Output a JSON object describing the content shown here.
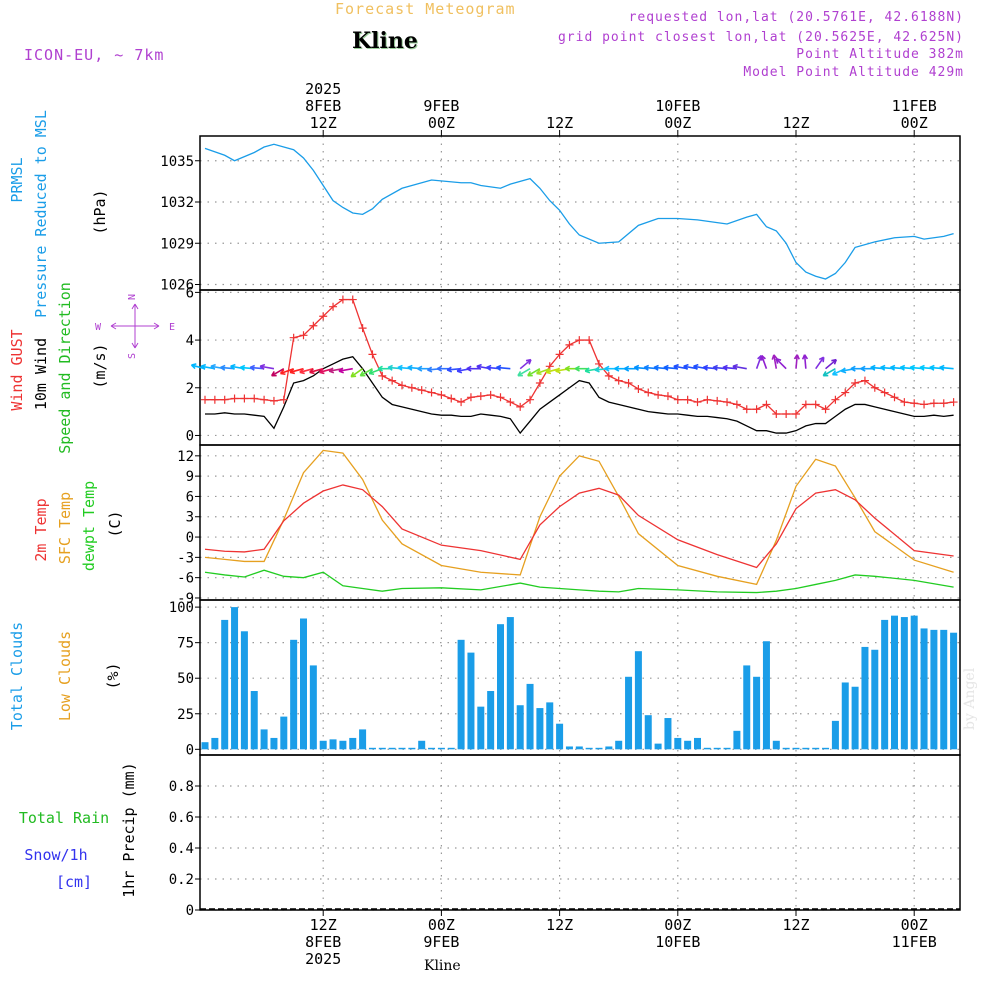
{
  "header": {
    "product_title": "Forecast Meteogram",
    "station_name": "Kline",
    "model": "ICON-EU, ~ 7km",
    "requested_lonlat": "requested lon,lat (20.5761E, 42.6188N)",
    "grid_point_lonlat": "grid point closest lon,lat (20.5625E, 42.625N)",
    "point_altitude": "Point Altitude 382m",
    "model_point_altitude": "Model Point Altitude 429m"
  },
  "footer": {
    "station_name": "Kline",
    "watermark": "by Angel"
  },
  "colors": {
    "pressure": "#1a9de8",
    "gust": "#ee3333",
    "wind": "#000000",
    "direction": "#22bb22",
    "temp2m": "#ee3333",
    "sfc_temp": "#e6a020",
    "dewpt": "#22cc22",
    "total_clouds": "#1a9de8",
    "low_clouds": "#e6a020",
    "rain": "#22bb22",
    "snow": "#3333ee",
    "title": "#f0c060",
    "info": "#b040d0"
  },
  "time_axis": {
    "top_ticks": [
      {
        "t": 12,
        "lines": [
          "2025",
          "8FEB",
          "12Z"
        ]
      },
      {
        "t": 24,
        "lines": [
          "9FEB",
          "00Z"
        ]
      },
      {
        "t": 36,
        "lines": [
          "12Z"
        ]
      },
      {
        "t": 48,
        "lines": [
          "10FEB",
          "00Z"
        ]
      },
      {
        "t": 60,
        "lines": [
          "12Z"
        ]
      },
      {
        "t": 72,
        "lines": [
          "11FEB",
          "00Z"
        ]
      }
    ],
    "bottom_ticks": [
      {
        "t": 12,
        "lines": [
          "12Z",
          "8FEB",
          "2025"
        ]
      },
      {
        "t": 24,
        "lines": [
          "00Z",
          "9FEB"
        ]
      },
      {
        "t": 36,
        "lines": [
          "12Z"
        ]
      },
      {
        "t": 48,
        "lines": [
          "00Z",
          "10FEB"
        ]
      },
      {
        "t": 60,
        "lines": [
          "12Z"
        ]
      },
      {
        "t": 72,
        "lines": [
          "00Z",
          "11FEB"
        ]
      }
    ]
  },
  "chart_data": [
    {
      "type": "line",
      "title": "PRMSL Pressure Reduced to MSL",
      "ylabel_lines": [
        "PRMSL",
        "Pressure Reduced to MSL"
      ],
      "unit": "(hPa)",
      "ylim": [
        1025.6,
        1036.8
      ],
      "yticks": [
        1026,
        1029,
        1032,
        1035
      ],
      "x": [
        0,
        2,
        3,
        5,
        6,
        7,
        9,
        10,
        11,
        12,
        13,
        14,
        15,
        16,
        17,
        18,
        20,
        23,
        26,
        27,
        28,
        29,
        30,
        31,
        33,
        34,
        35,
        36,
        37,
        38,
        40,
        42,
        44,
        46,
        48,
        50,
        52,
        53,
        55,
        56,
        57,
        58,
        59,
        60,
        61,
        62,
        63,
        64,
        65,
        66,
        68,
        70,
        72,
        73,
        74,
        75,
        76
      ],
      "series": [
        {
          "name": "PRMSL",
          "values": [
            1035.9,
            1035.4,
            1035.0,
            1035.6,
            1036.0,
            1036.2,
            1035.8,
            1035.2,
            1034.3,
            1033.2,
            1032.1,
            1031.6,
            1031.2,
            1031.1,
            1031.5,
            1032.2,
            1033.0,
            1033.6,
            1033.4,
            1033.4,
            1033.2,
            1033.1,
            1033.0,
            1033.3,
            1033.7,
            1033.0,
            1032.1,
            1031.4,
            1030.4,
            1029.6,
            1029.0,
            1029.1,
            1030.3,
            1030.8,
            1030.8,
            1030.7,
            1030.5,
            1030.4,
            1030.9,
            1031.1,
            1030.2,
            1029.9,
            1029.0,
            1027.6,
            1026.9,
            1026.6,
            1026.4,
            1026.8,
            1027.6,
            1028.7,
            1029.1,
            1029.4,
            1029.5,
            1029.3,
            1029.4,
            1029.5,
            1029.7
          ]
        }
      ]
    },
    {
      "type": "line",
      "title": "Wind GUST, 10m Wind Speed and Direction",
      "ylabel_lines": [
        "Wind GUST",
        "10m Wind",
        "Speed and Direction"
      ],
      "unit": "(m/s)",
      "compass_labels": {
        "north": "N",
        "south": "S",
        "west": "W",
        "east": "E"
      },
      "ylim": [
        -0.4,
        6.1
      ],
      "yticks": [
        0,
        2,
        4,
        6
      ],
      "x": [
        0,
        1,
        2,
        3,
        4,
        5,
        6,
        7,
        8,
        9,
        10,
        11,
        12,
        13,
        14,
        15,
        16,
        17,
        18,
        19,
        20,
        21,
        22,
        23,
        24,
        25,
        26,
        27,
        28,
        29,
        30,
        31,
        32,
        33,
        34,
        35,
        36,
        37,
        38,
        39,
        40,
        41,
        42,
        43,
        44,
        45,
        46,
        47,
        48,
        49,
        50,
        51,
        52,
        53,
        54,
        55,
        56,
        57,
        58,
        59,
        60,
        61,
        62,
        63,
        64,
        65,
        66,
        67,
        68,
        69,
        70,
        71,
        72,
        73,
        74,
        75,
        76
      ],
      "series": [
        {
          "name": "Wind GUST",
          "values": [
            1.5,
            1.5,
            1.5,
            1.55,
            1.55,
            1.55,
            1.5,
            1.45,
            1.5,
            4.1,
            4.2,
            4.6,
            5.0,
            5.4,
            5.7,
            5.7,
            4.5,
            3.4,
            2.5,
            2.3,
            2.1,
            2.0,
            1.9,
            1.8,
            1.7,
            1.55,
            1.4,
            1.6,
            1.65,
            1.7,
            1.6,
            1.4,
            1.2,
            1.5,
            2.2,
            2.9,
            3.4,
            3.8,
            4.0,
            4.0,
            3.0,
            2.5,
            2.3,
            2.2,
            1.95,
            1.8,
            1.7,
            1.65,
            1.5,
            1.5,
            1.4,
            1.5,
            1.45,
            1.4,
            1.3,
            1.1,
            1.1,
            1.3,
            0.9,
            0.9,
            0.9,
            1.3,
            1.3,
            1.1,
            1.5,
            1.8,
            2.2,
            2.3,
            2.0,
            1.8,
            1.6,
            1.4,
            1.35,
            1.3,
            1.35,
            1.35,
            1.4
          ]
        },
        {
          "name": "10m Wind",
          "values": [
            0.9,
            0.9,
            0.95,
            0.9,
            0.9,
            0.85,
            0.8,
            0.3,
            1.2,
            2.2,
            2.3,
            2.5,
            2.8,
            3.0,
            3.2,
            3.3,
            2.8,
            2.2,
            1.6,
            1.3,
            1.2,
            1.1,
            1.0,
            0.9,
            0.85,
            0.85,
            0.8,
            0.8,
            0.9,
            0.85,
            0.8,
            0.7,
            0.1,
            0.6,
            1.1,
            1.4,
            1.7,
            2.0,
            2.3,
            2.2,
            1.6,
            1.4,
            1.3,
            1.2,
            1.1,
            1.0,
            0.95,
            0.9,
            0.9,
            0.85,
            0.8,
            0.8,
            0.75,
            0.7,
            0.6,
            0.4,
            0.2,
            0.2,
            0.1,
            0.1,
            0.2,
            0.4,
            0.5,
            0.5,
            0.8,
            1.1,
            1.3,
            1.3,
            1.2,
            1.1,
            1.0,
            0.9,
            0.8,
            0.8,
            0.85,
            0.8,
            0.85
          ]
        }
      ],
      "direction_barbs": {
        "x": [
          0,
          1,
          2,
          3,
          4,
          5,
          6,
          7,
          8,
          9,
          10,
          11,
          12,
          13,
          14,
          15,
          16,
          17,
          18,
          19,
          20,
          21,
          22,
          23,
          24,
          25,
          26,
          27,
          28,
          29,
          30,
          31,
          32,
          33,
          34,
          35,
          36,
          37,
          38,
          39,
          40,
          41,
          42,
          43,
          44,
          45,
          46,
          47,
          48,
          49,
          50,
          51,
          52,
          53,
          54,
          55,
          56,
          57,
          58,
          59,
          60,
          61,
          62,
          63,
          64,
          65,
          66,
          67,
          68,
          69,
          70,
          71,
          72,
          73,
          74,
          75,
          76
        ],
        "deg": [
          105,
          100,
          100,
          95,
          100,
          95,
          95,
          100,
          60,
          70,
          75,
          75,
          75,
          75,
          80,
          80,
          55,
          60,
          70,
          90,
          95,
          95,
          95,
          90,
          85,
          90,
          85,
          80,
          90,
          100,
          95,
          95,
          230,
          60,
          60,
          70,
          75,
          80,
          90,
          90,
          80,
          85,
          90,
          90,
          90,
          95,
          95,
          95,
          95,
          100,
          100,
          100,
          95,
          95,
          95,
          100,
          200,
          160,
          170,
          135,
          185,
          175,
          215,
          230,
          60,
          65,
          80,
          90,
          90,
          95,
          95,
          95,
          95,
          95,
          95,
          95,
          95
        ],
        "colors": [
          "#00b7ff",
          "#00b7ff",
          "#22a6ff",
          "#2a8cff",
          "#00b7ff",
          "#00c8ff",
          "#4060ff",
          "#8030e0",
          "#c00060",
          "#ff2020",
          "#ff2020",
          "#ff3040",
          "#e01040",
          "#e01060",
          "#c02080",
          "#c000a0",
          "#80e020",
          "#60e040",
          "#30e070",
          "#20e0a0",
          "#20d0d0",
          "#10c0ff",
          "#10b0ff",
          "#20a0ff",
          "#3080ff",
          "#3070ff",
          "#3050ff",
          "#4040ff",
          "#5030f0",
          "#5030f0",
          "#4040ff",
          "#2050ff",
          "#8030e0",
          "#40e0a0",
          "#70e030",
          "#a0e020",
          "#c0e010",
          "#c0e010",
          "#80e020",
          "#40e060",
          "#20e0a0",
          "#20d0d0",
          "#10c0ff",
          "#00b0ff",
          "#00a0ff",
          "#0090ff",
          "#1080ff",
          "#1070ff",
          "#1060ff",
          "#2050ff",
          "#2050ff",
          "#2050ff",
          "#3040ff",
          "#4040f0",
          "#5030f0",
          "#6030e0",
          "#8030e0",
          "#9020d0",
          "#a020c0",
          "#9020d0",
          "#a020c0",
          "#9020d0",
          "#8030e0",
          "#7020d0",
          "#10c0c0",
          "#10c0ff",
          "#10b0ff",
          "#10a0ff",
          "#10a0ff",
          "#00b0ff",
          "#00b7ff",
          "#00b7ff",
          "#00c0ff",
          "#00c8ff",
          "#00c8ff",
          "#00c0ff",
          "#00b7ff"
        ]
      }
    },
    {
      "type": "line",
      "title": "2m Temp, SFC Temp, dewpt Temp",
      "ylabel_lines": [
        "2m Temp",
        "SFC Temp",
        "dewpt Temp"
      ],
      "unit": "(C)",
      "ylim": [
        -9.3,
        13.6
      ],
      "yticks": [
        -9,
        -6,
        -3,
        0,
        3,
        6,
        9,
        12
      ],
      "x": [
        0,
        2,
        4,
        6,
        8,
        10,
        12,
        14,
        16,
        18,
        20,
        24,
        28,
        32,
        34,
        36,
        38,
        40,
        42,
        44,
        48,
        52,
        56,
        58,
        60,
        62,
        64,
        66,
        68,
        72,
        76
      ],
      "series": [
        {
          "name": "2m Temp",
          "values": [
            -1.8,
            -2.1,
            -2.2,
            -1.8,
            2.4,
            5.0,
            6.8,
            7.7,
            7.0,
            4.5,
            1.2,
            -1.2,
            -2.0,
            -3.3,
            1.8,
            4.5,
            6.5,
            7.2,
            6.2,
            3.2,
            -0.4,
            -2.6,
            -4.5,
            -1.0,
            4.2,
            6.5,
            7.0,
            5.5,
            2.8,
            -2.0,
            -2.8
          ]
        },
        {
          "name": "SFC Temp",
          "values": [
            -3.0,
            -3.3,
            -3.6,
            -3.6,
            2.6,
            9.5,
            12.8,
            12.4,
            8.5,
            2.5,
            -1.0,
            -4.2,
            -5.2,
            -5.6,
            3.0,
            9.0,
            12.0,
            11.2,
            6.0,
            0.5,
            -4.2,
            -5.8,
            -7.0,
            -0.5,
            7.5,
            11.5,
            10.5,
            5.8,
            0.8,
            -3.4,
            -5.2
          ]
        },
        {
          "name": "dewpt Temp",
          "values": [
            -5.2,
            -5.6,
            -5.9,
            -4.9,
            -5.8,
            -6.0,
            -5.2,
            -7.2,
            -7.6,
            -8.0,
            -7.6,
            -7.5,
            -7.8,
            -6.8,
            -7.4,
            -7.6,
            -7.8,
            -8.0,
            -8.1,
            -7.6,
            -7.8,
            -8.1,
            -8.2,
            -8.0,
            -7.6,
            -7.0,
            -6.4,
            -5.6,
            -5.8,
            -6.4,
            -7.4
          ]
        }
      ]
    },
    {
      "type": "bar",
      "title": "Total Clouds, Low Clouds",
      "ylabel_lines": [
        "Total Clouds",
        "Low Clouds"
      ],
      "unit": "(%)",
      "ylim": [
        -4,
        105
      ],
      "yticks": [
        0,
        25,
        50,
        75,
        100
      ],
      "x": [
        0,
        1,
        2,
        3,
        4,
        5,
        6,
        7,
        8,
        9,
        10,
        11,
        12,
        13,
        14,
        15,
        16,
        17,
        18,
        19,
        20,
        21,
        22,
        23,
        24,
        25,
        26,
        27,
        28,
        29,
        30,
        31,
        32,
        33,
        34,
        35,
        36,
        37,
        38,
        39,
        40,
        41,
        42,
        43,
        44,
        45,
        46,
        47,
        48,
        49,
        50,
        51,
        52,
        53,
        54,
        55,
        56,
        57,
        58,
        59,
        60,
        61,
        62,
        63,
        64,
        65,
        66,
        67,
        68,
        69,
        70,
        71,
        72,
        73,
        74,
        75,
        76
      ],
      "series": [
        {
          "name": "Total Clouds",
          "values": [
            5,
            8,
            91,
            100,
            83,
            41,
            14,
            8,
            23,
            77,
            92,
            59,
            6,
            7,
            6,
            8,
            14,
            0,
            0,
            0,
            0,
            0,
            6,
            0,
            0,
            0,
            77,
            68,
            30,
            41,
            88,
            93,
            31,
            46,
            29,
            33,
            18,
            2,
            2,
            1,
            1,
            2,
            6,
            51,
            69,
            24,
            4,
            22,
            8,
            6,
            8,
            0,
            0,
            0,
            13,
            59,
            51,
            76,
            6,
            0,
            0,
            0,
            0,
            0,
            20,
            47,
            44,
            72,
            70,
            91,
            94,
            93,
            94,
            85,
            84,
            84,
            82
          ]
        }
      ]
    },
    {
      "type": "bar",
      "title": "Total Rain, Snow/1h",
      "ylabel_lines": [
        "1hr Precip (mm)"
      ],
      "legend_rain": "Total Rain",
      "legend_snow": "Snow/1h",
      "legend_snow_unit": "[cm]",
      "ylim": [
        0,
        1.0
      ],
      "yticks": [
        0,
        0.2,
        0.4,
        0.6,
        0.8
      ],
      "ytick_labels": [
        "0",
        "0.2",
        "0.4",
        "0.6",
        "0.8"
      ],
      "x": [],
      "series": [
        {
          "name": "Total Rain",
          "values": []
        },
        {
          "name": "Snow/1h",
          "values": []
        }
      ]
    }
  ]
}
